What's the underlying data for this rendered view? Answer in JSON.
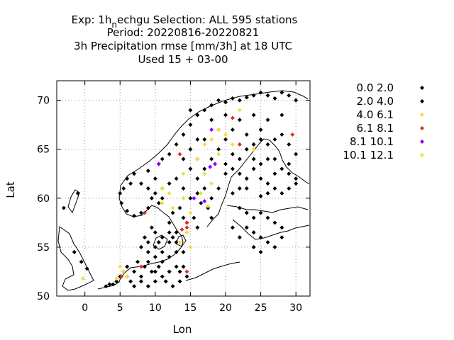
{
  "chart_data": {
    "type": "scatter",
    "title_lines": [
      "Exp: 1h_nechgu   Selection: ALL    595 stations",
      "Period: 20220816-20220821",
      "3h Precipitation rmse [mm/3h] at  18 UTC",
      "Used  15 + 03-00"
    ],
    "title_prefix": "Exp: 1h",
    "title_sub": "n",
    "title_rest": "echgu   Selection: ALL    595 stations",
    "xlabel": "Lon",
    "ylabel": "Lat",
    "xlim": [
      -4,
      32
    ],
    "ylim": [
      50,
      72
    ],
    "xticks": [
      0,
      5,
      10,
      15,
      20,
      25,
      30
    ],
    "yticks": [
      50,
      55,
      60,
      65,
      70
    ],
    "grid": true,
    "legend_position": "right",
    "series": [
      {
        "name": "0.0 2.0",
        "color": "#000000",
        "points": [
          [
            -3,
            59
          ],
          [
            -1,
            60.5
          ],
          [
            -1.5,
            54.5
          ],
          [
            -0.5,
            53.5
          ],
          [
            0.3,
            52.8
          ],
          [
            5,
            60.5
          ],
          [
            5.5,
            61
          ],
          [
            5.2,
            59.5
          ],
          [
            6,
            62
          ],
          [
            6.5,
            61.5
          ],
          [
            7,
            62.5
          ],
          [
            6,
            58.7
          ],
          [
            7,
            58.2
          ],
          [
            8,
            58.5
          ],
          [
            9,
            59
          ],
          [
            9.5,
            60
          ],
          [
            10,
            60.5
          ],
          [
            9,
            61
          ],
          [
            8,
            61.5
          ],
          [
            10.5,
            59.5
          ],
          [
            11,
            60
          ],
          [
            11,
            61
          ],
          [
            10,
            62
          ],
          [
            9,
            62.8
          ],
          [
            10.5,
            63.5
          ],
          [
            11,
            64
          ],
          [
            12,
            64.5
          ],
          [
            13,
            65.5
          ],
          [
            14,
            66.5
          ],
          [
            15,
            67.5
          ],
          [
            16,
            68.5
          ],
          [
            17,
            69
          ],
          [
            18,
            69.5
          ],
          [
            19,
            70
          ],
          [
            20,
            69.8
          ],
          [
            21,
            70.2
          ],
          [
            22,
            70
          ],
          [
            23,
            70.3
          ],
          [
            24,
            70.5
          ],
          [
            25,
            70.8
          ],
          [
            26,
            70.5
          ],
          [
            27,
            70.2
          ],
          [
            28,
            70.8
          ],
          [
            29,
            70.5
          ],
          [
            30,
            70
          ],
          [
            15,
            69
          ],
          [
            16,
            66
          ],
          [
            18,
            68
          ],
          [
            20,
            68.5
          ],
          [
            22,
            68
          ],
          [
            24,
            68.5
          ],
          [
            26,
            68
          ],
          [
            28,
            68.5
          ],
          [
            14,
            64
          ],
          [
            15,
            63
          ],
          [
            16,
            62
          ],
          [
            17,
            61
          ],
          [
            18,
            60
          ],
          [
            19,
            61
          ],
          [
            20,
            62.5
          ],
          [
            21,
            63
          ],
          [
            22,
            64
          ],
          [
            23,
            65
          ],
          [
            24,
            65.5
          ],
          [
            25,
            66
          ],
          [
            26,
            65.5
          ],
          [
            27,
            64
          ],
          [
            28,
            63
          ],
          [
            29,
            62.5
          ],
          [
            30,
            62
          ],
          [
            24,
            63
          ],
          [
            25,
            62
          ],
          [
            26,
            61.5
          ],
          [
            27,
            61
          ],
          [
            28,
            60.5
          ],
          [
            22,
            61
          ],
          [
            23,
            62
          ],
          [
            21,
            60.5
          ],
          [
            25,
            60.2
          ],
          [
            26,
            60.5
          ],
          [
            29,
            61
          ],
          [
            22,
            59
          ],
          [
            23,
            58.5
          ],
          [
            24,
            58
          ],
          [
            25,
            58.5
          ],
          [
            26,
            58
          ],
          [
            27,
            57.5
          ],
          [
            28,
            57
          ],
          [
            23,
            57
          ],
          [
            24,
            56.5
          ],
          [
            25,
            56
          ],
          [
            26,
            55.5
          ],
          [
            22,
            56
          ],
          [
            21,
            57
          ],
          [
            24,
            55
          ],
          [
            25,
            54.5
          ],
          [
            27,
            55
          ],
          [
            28,
            56
          ],
          [
            8.5,
            56
          ],
          [
            9,
            55.5
          ],
          [
            9.5,
            57
          ],
          [
            10,
            56.5
          ],
          [
            10.5,
            55.5
          ],
          [
            11,
            56
          ],
          [
            12,
            55.5
          ],
          [
            12.5,
            56
          ],
          [
            8,
            55
          ],
          [
            9,
            54.5
          ],
          [
            10,
            54
          ],
          [
            11,
            53.5
          ],
          [
            12,
            54
          ],
          [
            13,
            54.5
          ],
          [
            14,
            53
          ],
          [
            13,
            53
          ],
          [
            12,
            52.5
          ],
          [
            11,
            52
          ],
          [
            10,
            51.5
          ],
          [
            9,
            51
          ],
          [
            8,
            52
          ],
          [
            7,
            52.5
          ],
          [
            7.5,
            53.5
          ],
          [
            8.5,
            53
          ],
          [
            9.5,
            52.5
          ],
          [
            10.5,
            53
          ],
          [
            11.5,
            51.5
          ],
          [
            12.5,
            51
          ],
          [
            13.5,
            51.5
          ],
          [
            14.5,
            52
          ],
          [
            13.5,
            52.5
          ],
          [
            14,
            54.5
          ],
          [
            6.5,
            51.5
          ],
          [
            7,
            51
          ],
          [
            6,
            52
          ],
          [
            8,
            51.5
          ],
          [
            4.5,
            51.5
          ],
          [
            5,
            52
          ],
          [
            5.5,
            52.5
          ],
          [
            6,
            53
          ],
          [
            4,
            51.2
          ],
          [
            3.5,
            51.2
          ],
          [
            3,
            51
          ],
          [
            13.5,
            59
          ],
          [
            14,
            58
          ],
          [
            12.5,
            58.5
          ],
          [
            12,
            57.5
          ],
          [
            13,
            56.5
          ],
          [
            14.5,
            57.5
          ],
          [
            15.5,
            58
          ],
          [
            16,
            57
          ],
          [
            16.5,
            59.5
          ],
          [
            17.5,
            59
          ],
          [
            18,
            58
          ],
          [
            16,
            60.5
          ],
          [
            15,
            60
          ],
          [
            14,
            61
          ],
          [
            13,
            62
          ],
          [
            12,
            61.5
          ]
        ]
      },
      {
        "name": "2.0 4.0",
        "color": "#000000",
        "points": [
          [
            18,
            64
          ],
          [
            19,
            65
          ],
          [
            20,
            66
          ],
          [
            21,
            64.5
          ],
          [
            20,
            63.5
          ],
          [
            17,
            63
          ],
          [
            16,
            64
          ],
          [
            15,
            65
          ],
          [
            17,
            66
          ],
          [
            19,
            67
          ],
          [
            21,
            67
          ],
          [
            23,
            66.5
          ],
          [
            25,
            67
          ],
          [
            27,
            66
          ],
          [
            29,
            65.5
          ],
          [
            30,
            64.5
          ],
          [
            28,
            66.5
          ],
          [
            26,
            64
          ],
          [
            24,
            64
          ],
          [
            22,
            62.5
          ],
          [
            23,
            61
          ],
          [
            25,
            63.5
          ],
          [
            27,
            62.5
          ],
          [
            29,
            63.5
          ],
          [
            30,
            61.5
          ],
          [
            10,
            55
          ],
          [
            11,
            54.5
          ],
          [
            12,
            56.5
          ],
          [
            13,
            55.5
          ],
          [
            9,
            53.5
          ],
          [
            10,
            52.5
          ]
        ]
      },
      {
        "name": "4.0 6.1",
        "color": "#f0e040",
        "points": [
          [
            11,
            61
          ],
          [
            12,
            60.5
          ],
          [
            11,
            59.5
          ],
          [
            12.5,
            59
          ],
          [
            14,
            62.5
          ],
          [
            16,
            64
          ],
          [
            17,
            65.5
          ],
          [
            18,
            66
          ],
          [
            19,
            67
          ],
          [
            20,
            66.5
          ],
          [
            22,
            69
          ],
          [
            17,
            62.5
          ],
          [
            18,
            61.5
          ],
          [
            16.5,
            60.5
          ],
          [
            14,
            60
          ],
          [
            14.5,
            56.5
          ],
          [
            15,
            55
          ],
          [
            13.5,
            55.5
          ],
          [
            5,
            53
          ],
          [
            5.5,
            52.5
          ],
          [
            6,
            52
          ],
          [
            4.5,
            51.8
          ],
          [
            -0.3,
            51.8
          ],
          [
            15,
            58.5
          ],
          [
            17.5,
            59.2
          ],
          [
            19,
            64.5
          ],
          [
            21,
            65.5
          ],
          [
            24,
            65
          ]
        ]
      },
      {
        "name": "6.1 8.1",
        "color": "#e03020",
        "points": [
          [
            8.5,
            58.5
          ],
          [
            14.5,
            57.5
          ],
          [
            14.5,
            57
          ],
          [
            13.8,
            56.8
          ],
          [
            13.5,
            64.5
          ],
          [
            21,
            68.2
          ],
          [
            22,
            65.5
          ],
          [
            29.5,
            66.5
          ],
          [
            8,
            53
          ],
          [
            14.5,
            52.5
          ],
          [
            5.2,
            52
          ]
        ]
      },
      {
        "name": "8.1 10.1",
        "color": "#8800ff",
        "points": [
          [
            10.5,
            63.5
          ],
          [
            18,
            67
          ],
          [
            17,
            59.7
          ],
          [
            15.5,
            60
          ],
          [
            17.8,
            63.2
          ],
          [
            18.5,
            63.5
          ]
        ]
      },
      {
        "name": "10.1 12.1",
        "color": "#f0e040",
        "points": []
      }
    ]
  }
}
